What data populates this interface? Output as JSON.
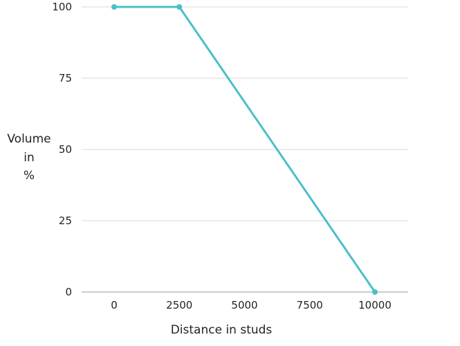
{
  "chart_data": {
    "type": "line",
    "title": "",
    "xlabel": "Distance in studs",
    "ylabel_lines": [
      "Volume",
      "in",
      "%"
    ],
    "x_ticks": [
      0,
      2500,
      5000,
      7500,
      10000
    ],
    "y_ticks": [
      0,
      25,
      50,
      75,
      100
    ],
    "xlim": [
      0,
      10000
    ],
    "ylim": [
      0,
      100
    ],
    "grid": "horizontal",
    "series": [
      {
        "color": "#4bbfc8",
        "points": [
          {
            "x": 0,
            "y": 100
          },
          {
            "x": 2500,
            "y": 100
          },
          {
            "x": 10000,
            "y": 0
          }
        ]
      }
    ]
  }
}
